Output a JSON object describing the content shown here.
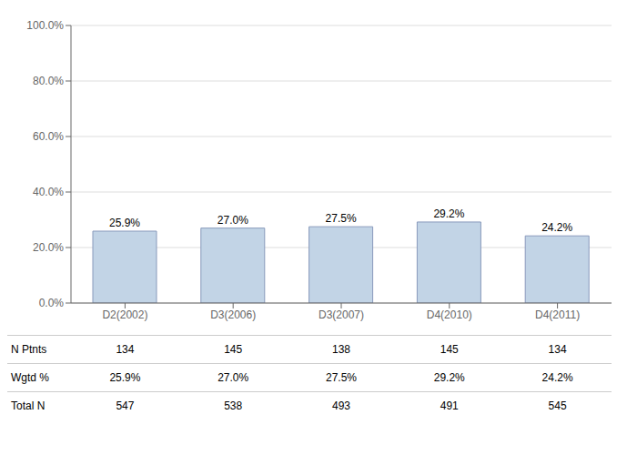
{
  "chart_data": {
    "type": "bar",
    "categories": [
      "D2(2002)",
      "D3(2006)",
      "D3(2007)",
      "D4(2010)",
      "D4(2011)"
    ],
    "values": [
      25.9,
      27.0,
      27.5,
      29.2,
      24.2
    ],
    "value_labels": [
      "25.9%",
      "27.0%",
      "27.5%",
      "29.2%",
      "24.2%"
    ],
    "data_labels": true,
    "color": "#c2d4e6",
    "ylim": [
      0,
      100
    ],
    "yticks": [
      {
        "value": 0,
        "label": "0.0%"
      },
      {
        "value": 20,
        "label": "20.0%"
      },
      {
        "value": 40,
        "label": "40.0%"
      },
      {
        "value": 60,
        "label": "60.0%"
      },
      {
        "value": 80,
        "label": "80.0%"
      },
      {
        "value": 100,
        "label": "100.0%"
      }
    ],
    "grid": true,
    "table": [
      {
        "label": "N Ptnts",
        "values": [
          134,
          145,
          138,
          145,
          134
        ]
      },
      {
        "label": "Wgtd %",
        "values": [
          25.9,
          27.0,
          27.5,
          29.2,
          24.2
        ],
        "value_labels": [
          "25.9%",
          "27.0%",
          "27.5%",
          "29.2%",
          "24.2%"
        ]
      },
      {
        "label": "Total N",
        "values": [
          547,
          538,
          493,
          491,
          545
        ]
      }
    ]
  }
}
